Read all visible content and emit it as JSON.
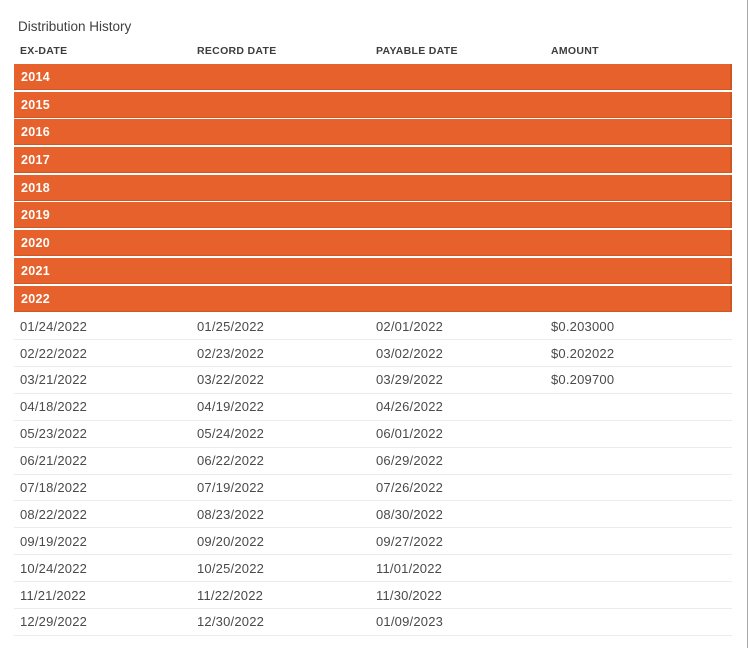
{
  "page": {
    "title": "Distribution History",
    "accent_color": "#e6612b"
  },
  "table": {
    "columns": [
      "EX-DATE",
      "RECORD DATE",
      "PAYABLE DATE",
      "AMOUNT"
    ],
    "year_groups": [
      "2014",
      "2015",
      "2016",
      "2017",
      "2018",
      "2019",
      "2020",
      "2021",
      "2022"
    ],
    "expanded_year": "2022",
    "rows": [
      {
        "ex_date": "01/24/2022",
        "record_date": "01/25/2022",
        "payable_date": "02/01/2022",
        "amount": "$0.203000"
      },
      {
        "ex_date": "02/22/2022",
        "record_date": "02/23/2022",
        "payable_date": "03/02/2022",
        "amount": "$0.202022"
      },
      {
        "ex_date": "03/21/2022",
        "record_date": "03/22/2022",
        "payable_date": "03/29/2022",
        "amount": "$0.209700"
      },
      {
        "ex_date": "04/18/2022",
        "record_date": "04/19/2022",
        "payable_date": "04/26/2022",
        "amount": ""
      },
      {
        "ex_date": "05/23/2022",
        "record_date": "05/24/2022",
        "payable_date": "06/01/2022",
        "amount": ""
      },
      {
        "ex_date": "06/21/2022",
        "record_date": "06/22/2022",
        "payable_date": "06/29/2022",
        "amount": ""
      },
      {
        "ex_date": "07/18/2022",
        "record_date": "07/19/2022",
        "payable_date": "07/26/2022",
        "amount": ""
      },
      {
        "ex_date": "08/22/2022",
        "record_date": "08/23/2022",
        "payable_date": "08/30/2022",
        "amount": ""
      },
      {
        "ex_date": "09/19/2022",
        "record_date": "09/20/2022",
        "payable_date": "09/27/2022",
        "amount": ""
      },
      {
        "ex_date": "10/24/2022",
        "record_date": "10/25/2022",
        "payable_date": "11/01/2022",
        "amount": ""
      },
      {
        "ex_date": "11/21/2022",
        "record_date": "11/22/2022",
        "payable_date": "11/30/2022",
        "amount": ""
      },
      {
        "ex_date": "12/29/2022",
        "record_date": "12/30/2022",
        "payable_date": "01/09/2023",
        "amount": ""
      }
    ]
  }
}
